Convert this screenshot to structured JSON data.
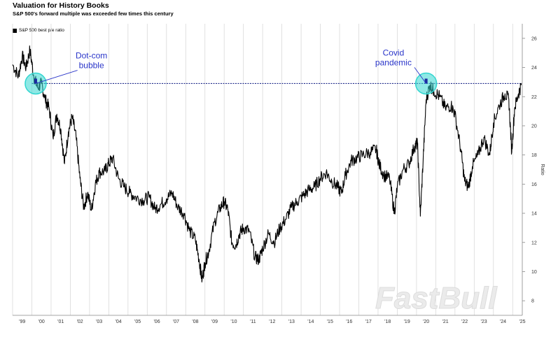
{
  "title": "Valuation for History Books",
  "subtitle": "S&P 500's forward multiple was exceeded few times this century",
  "watermark": "FastBull",
  "chart_data": {
    "type": "line",
    "legend": "S&P 500 best p/e ratio",
    "legend_position": "top-left",
    "ylabel": "Ratio",
    "ylim": [
      7,
      27
    ],
    "yticks": [
      8,
      10,
      12,
      14,
      16,
      18,
      20,
      22,
      24,
      26
    ],
    "y_axis_side": "right",
    "xlim": [
      1999.0,
      2025.5
    ],
    "xticks": [
      "'99",
      "'00",
      "'01",
      "'02",
      "'03",
      "'04",
      "'05",
      "'06",
      "'07",
      "'08",
      "'09",
      "'10",
      "'11",
      "'12",
      "'13",
      "'14",
      "'15",
      "'16",
      "'17",
      "'18",
      "'19",
      "'20",
      "'21",
      "'22",
      "'23",
      "'24",
      "'25"
    ],
    "grid": "vertical",
    "reference_line": {
      "y": 22.9,
      "style": "dotted",
      "color": "#1f2a8a"
    },
    "highlights": [
      {
        "x": 2000.2,
        "y": 22.9,
        "color": "#33d6d0"
      },
      {
        "x": 2020.5,
        "y": 22.9,
        "color": "#33d6d0"
      }
    ],
    "annotations": [
      {
        "text_lines": [
          "Dot-com",
          "bubble"
        ],
        "x": 2003.1,
        "y": 24.0,
        "arrow_to": [
          2000.2,
          22.9
        ]
      },
      {
        "text_lines": [
          "Covid",
          "pandemic"
        ],
        "x": 2018.8,
        "y": 24.2,
        "arrow_to": [
          2020.5,
          22.9
        ]
      }
    ],
    "series": [
      {
        "color": "#000000",
        "points": [
          [
            1999.0,
            24.2
          ],
          [
            1999.3,
            23.4
          ],
          [
            1999.5,
            24.8
          ],
          [
            1999.7,
            24.0
          ],
          [
            1999.9,
            25.2
          ],
          [
            2000.1,
            23.4
          ],
          [
            2000.3,
            22.6
          ],
          [
            2000.5,
            22.9
          ],
          [
            2000.7,
            21.8
          ],
          [
            2000.9,
            21.2
          ],
          [
            2001.1,
            19.2
          ],
          [
            2001.3,
            20.8
          ],
          [
            2001.5,
            19.8
          ],
          [
            2001.7,
            17.4
          ],
          [
            2001.9,
            19.6
          ],
          [
            2002.1,
            20.6
          ],
          [
            2002.3,
            19.2
          ],
          [
            2002.5,
            16.4
          ],
          [
            2002.7,
            14.4
          ],
          [
            2002.9,
            15.4
          ],
          [
            2003.1,
            14.2
          ],
          [
            2003.3,
            16.0
          ],
          [
            2003.5,
            16.8
          ],
          [
            2003.8,
            16.9
          ],
          [
            2004.0,
            17.4
          ],
          [
            2004.2,
            17.8
          ],
          [
            2004.5,
            16.4
          ],
          [
            2004.8,
            15.8
          ],
          [
            2005.1,
            15.4
          ],
          [
            2005.4,
            15.1
          ],
          [
            2005.8,
            14.9
          ],
          [
            2006.1,
            15.1
          ],
          [
            2006.4,
            14.3
          ],
          [
            2006.7,
            14.6
          ],
          [
            2007.0,
            15.0
          ],
          [
            2007.3,
            15.4
          ],
          [
            2007.6,
            14.4
          ],
          [
            2007.9,
            14.0
          ],
          [
            2008.2,
            12.8
          ],
          [
            2008.5,
            12.2
          ],
          [
            2008.7,
            10.8
          ],
          [
            2008.85,
            9.4
          ],
          [
            2009.0,
            10.6
          ],
          [
            2009.2,
            11.4
          ],
          [
            2009.5,
            13.4
          ],
          [
            2009.8,
            14.4
          ],
          [
            2010.0,
            14.8
          ],
          [
            2010.2,
            14.2
          ],
          [
            2010.4,
            12.0
          ],
          [
            2010.6,
            11.8
          ],
          [
            2010.8,
            12.6
          ],
          [
            2011.0,
            13.0
          ],
          [
            2011.3,
            12.8
          ],
          [
            2011.6,
            11.0
          ],
          [
            2011.8,
            10.8
          ],
          [
            2012.0,
            11.6
          ],
          [
            2012.3,
            12.6
          ],
          [
            2012.6,
            12.0
          ],
          [
            2012.9,
            13.0
          ],
          [
            2013.2,
            13.6
          ],
          [
            2013.5,
            14.4
          ],
          [
            2013.8,
            14.8
          ],
          [
            2014.1,
            15.2
          ],
          [
            2014.4,
            15.6
          ],
          [
            2014.7,
            15.8
          ],
          [
            2015.0,
            16.4
          ],
          [
            2015.3,
            16.8
          ],
          [
            2015.6,
            16.2
          ],
          [
            2015.9,
            15.8
          ],
          [
            2016.1,
            15.4
          ],
          [
            2016.3,
            16.6
          ],
          [
            2016.6,
            17.6
          ],
          [
            2016.9,
            17.8
          ],
          [
            2017.2,
            18.0
          ],
          [
            2017.6,
            18.2
          ],
          [
            2017.9,
            18.4
          ],
          [
            2018.05,
            17.4
          ],
          [
            2018.3,
            16.6
          ],
          [
            2018.6,
            16.4
          ],
          [
            2018.85,
            14.0
          ],
          [
            2019.0,
            15.8
          ],
          [
            2019.3,
            17.0
          ],
          [
            2019.6,
            17.4
          ],
          [
            2019.9,
            18.6
          ],
          [
            2020.05,
            18.8
          ],
          [
            2020.2,
            13.8
          ],
          [
            2020.35,
            17.8
          ],
          [
            2020.5,
            21.8
          ],
          [
            2020.7,
            22.8
          ],
          [
            2020.9,
            22.4
          ],
          [
            2021.2,
            22.0
          ],
          [
            2021.5,
            21.2
          ],
          [
            2021.8,
            21.4
          ],
          [
            2022.0,
            20.8
          ],
          [
            2022.3,
            18.4
          ],
          [
            2022.5,
            16.2
          ],
          [
            2022.7,
            15.8
          ],
          [
            2022.9,
            17.2
          ],
          [
            2023.2,
            18.0
          ],
          [
            2023.5,
            19.2
          ],
          [
            2023.8,
            18.0
          ],
          [
            2024.0,
            20.2
          ],
          [
            2024.3,
            21.4
          ],
          [
            2024.6,
            22.2
          ],
          [
            2024.8,
            21.8
          ],
          [
            2024.95,
            18.2
          ],
          [
            2025.1,
            21.2
          ],
          [
            2025.3,
            22.2
          ],
          [
            2025.45,
            22.8
          ]
        ]
      }
    ]
  }
}
